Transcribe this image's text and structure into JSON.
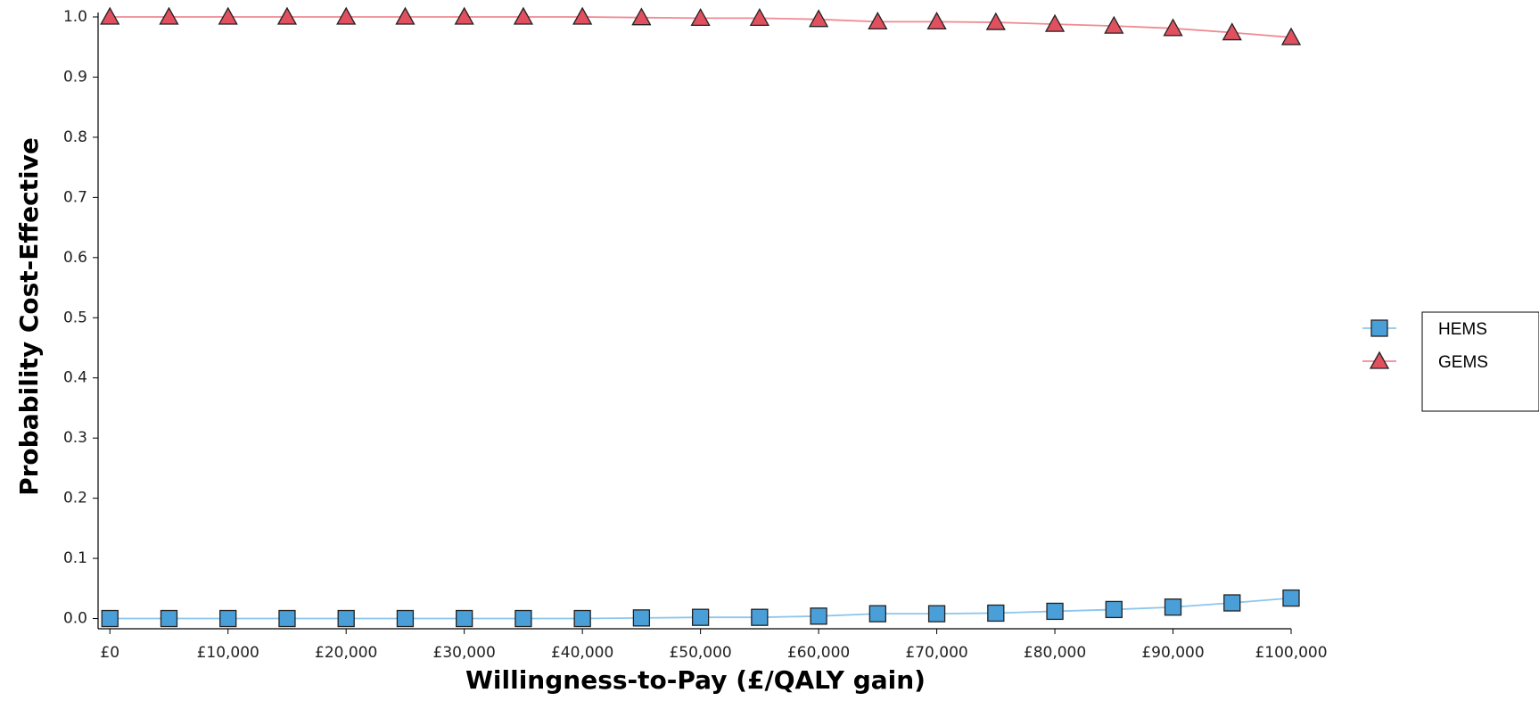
{
  "chart_data": {
    "type": "line",
    "x_label": "Willingness-to-Pay (£/QALY gain)",
    "y_label": "Probability Cost-Effective",
    "x": [
      0,
      5000,
      10000,
      15000,
      20000,
      25000,
      30000,
      35000,
      40000,
      45000,
      50000,
      55000,
      60000,
      65000,
      70000,
      75000,
      80000,
      85000,
      90000,
      95000,
      100000
    ],
    "series": [
      {
        "name": "HEMS",
        "color": "#4a9fd8",
        "line_color": "#8cc6ec",
        "marker": "square",
        "values": [
          0,
          0,
          0,
          0,
          0,
          0,
          0,
          0,
          0,
          0.001,
          0.002,
          0.002,
          0.004,
          0.008,
          0.008,
          0.009,
          0.012,
          0.015,
          0.019,
          0.026,
          0.034
        ]
      },
      {
        "name": "GEMS",
        "color": "#e0505f",
        "line_color": "#f08a92",
        "marker": "triangle",
        "values": [
          1,
          1,
          1,
          1,
          1,
          1,
          1,
          1,
          1,
          0.999,
          0.998,
          0.998,
          0.996,
          0.992,
          0.992,
          0.991,
          0.988,
          0.985,
          0.981,
          0.974,
          0.966
        ]
      }
    ],
    "xlim": [
      -1000,
      100000
    ],
    "xticks": [
      {
        "value": 0,
        "label": "£0"
      },
      {
        "value": 10000,
        "label": "£10,000"
      },
      {
        "value": 20000,
        "label": "£20,000"
      },
      {
        "value": 30000,
        "label": "£30,000"
      },
      {
        "value": 40000,
        "label": "£40,000"
      },
      {
        "value": 50000,
        "label": "£50,000"
      },
      {
        "value": 60000,
        "label": "£60,000"
      },
      {
        "value": 70000,
        "label": "£70,000"
      },
      {
        "value": 80000,
        "label": "£80,000"
      },
      {
        "value": 90000,
        "label": "£90,000"
      },
      {
        "value": 100000,
        "label": "£100,000"
      }
    ],
    "ylim": [
      -0.017,
      1.0
    ],
    "yticks": [
      {
        "value": 0,
        "label": "0.0"
      },
      0.1,
      0.2,
      0.3,
      0.4,
      0.5,
      0.6,
      0.7,
      0.8,
      0.9,
      {
        "value": 1,
        "label": "1.0"
      }
    ],
    "legend": "right"
  }
}
